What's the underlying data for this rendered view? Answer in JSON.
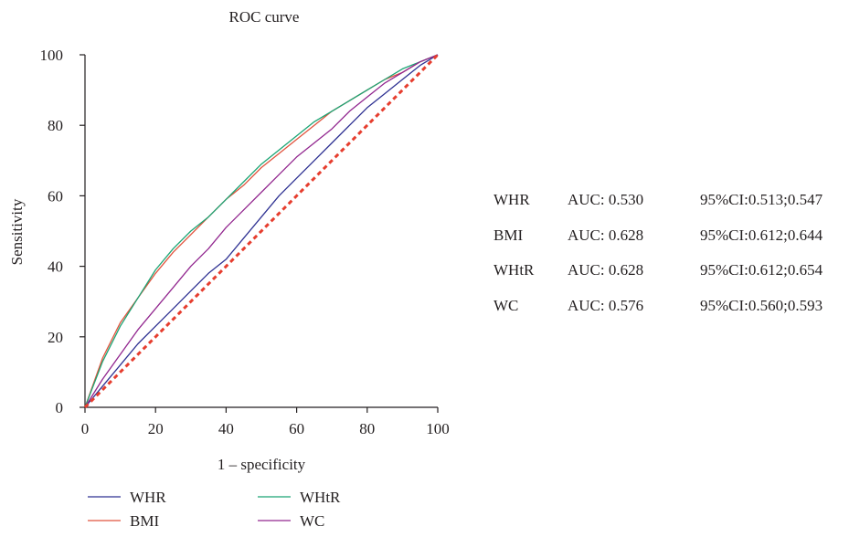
{
  "chart_data": {
    "type": "line",
    "title": "ROC curve",
    "xlabel": "1 – specificity",
    "ylabel": "Sensitivity",
    "xlim": [
      0,
      100
    ],
    "ylim": [
      0,
      100
    ],
    "xticks": [
      "0",
      "20",
      "40",
      "60",
      "80",
      "100"
    ],
    "yticks": [
      "0",
      "20",
      "40",
      "60",
      "80",
      "100"
    ],
    "grid": false,
    "legend_position": "bottom-left",
    "x": [
      0,
      5,
      10,
      15,
      20,
      25,
      30,
      35,
      40,
      45,
      50,
      55,
      60,
      65,
      70,
      75,
      80,
      85,
      90,
      95,
      100
    ],
    "series": [
      {
        "name": "WHR",
        "color": "#2e3192",
        "values": [
          0,
          6,
          12,
          18,
          23,
          28,
          33,
          38,
          42,
          48,
          54,
          60,
          65,
          70,
          75,
          80,
          85,
          89,
          93,
          97,
          100
        ]
      },
      {
        "name": "BMI",
        "color": "#e1533d",
        "values": [
          0,
          14,
          24,
          31,
          38,
          44,
          49,
          54,
          59,
          63,
          68,
          72,
          76,
          80,
          84,
          87,
          90,
          93,
          95,
          98,
          100
        ]
      },
      {
        "name": "WHtR",
        "color": "#1ba575",
        "values": [
          0,
          13,
          23,
          31,
          39,
          45,
          50,
          54,
          59,
          64,
          69,
          73,
          77,
          81,
          84,
          87,
          90,
          93,
          96,
          98,
          100
        ]
      },
      {
        "name": "WC",
        "color": "#92278f",
        "values": [
          0,
          8,
          15,
          22,
          28,
          34,
          40,
          45,
          51,
          56,
          61,
          66,
          71,
          75,
          79,
          84,
          88,
          92,
          95,
          98,
          100
        ]
      }
    ],
    "reference_line": {
      "color": "#e63d2e",
      "values": [
        0,
        100
      ]
    },
    "auc_table": [
      {
        "name": "WHR",
        "auc": "AUC: 0.530",
        "ci": "95%CI:0.513;0.547"
      },
      {
        "name": "BMI",
        "auc": "AUC: 0.628",
        "ci": "95%CI:0.612;0.644"
      },
      {
        "name": "WHtR",
        "auc": "AUC: 0.628",
        "ci": "95%CI:0.612;0.654"
      },
      {
        "name": "WC",
        "auc": "AUC: 0.576",
        "ci": "95%CI:0.560;0.593"
      }
    ]
  }
}
